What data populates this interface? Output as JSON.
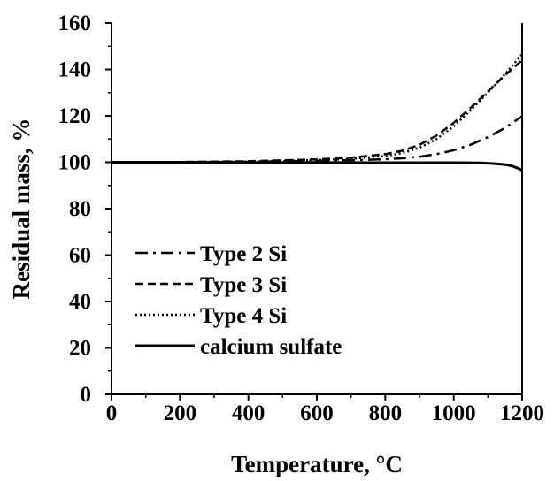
{
  "chart_data": {
    "type": "line",
    "title": "",
    "xlabel": "Temperature, °C",
    "ylabel": "Residual mass, %",
    "xlim": [
      0,
      1200
    ],
    "ylim": [
      0,
      160
    ],
    "x_ticks": [
      0,
      200,
      400,
      600,
      800,
      1000,
      1200
    ],
    "y_ticks": [
      0,
      20,
      40,
      60,
      80,
      100,
      120,
      140,
      160
    ],
    "grid": false,
    "legend_position": "lower-left",
    "series": [
      {
        "name": "Type 2 Si",
        "style": "dash-dot",
        "color": "#000000",
        "x": [
          0,
          200,
          400,
          600,
          700,
          800,
          850,
          900,
          950,
          1000,
          1050,
          1100,
          1150,
          1200
        ],
        "y": [
          100,
          100,
          100.2,
          100.6,
          100.9,
          101.3,
          101.7,
          102.4,
          103.5,
          105.2,
          107.6,
          110.8,
          114.8,
          119.8
        ]
      },
      {
        "name": "Type 3 Si",
        "style": "dashed",
        "color": "#000000",
        "x": [
          0,
          200,
          400,
          600,
          700,
          800,
          850,
          900,
          950,
          1000,
          1050,
          1100,
          1150,
          1200
        ],
        "y": [
          100,
          100.1,
          100.4,
          101.2,
          102,
          103.5,
          105,
          107.5,
          111.5,
          117,
          123.5,
          130.5,
          137.5,
          144
        ]
      },
      {
        "name": "Type 4 Si",
        "style": "dotted",
        "color": "#000000",
        "x": [
          0,
          200,
          400,
          600,
          700,
          800,
          850,
          900,
          950,
          1000,
          1050,
          1100,
          1150,
          1200
        ],
        "y": [
          100,
          100.1,
          100.3,
          100.9,
          101.5,
          102.7,
          104,
          106.3,
          110,
          115.5,
          122.5,
          130,
          138,
          146.5
        ]
      },
      {
        "name": "calcium sulfate",
        "style": "solid",
        "color": "#000000",
        "x": [
          0,
          200,
          400,
          600,
          800,
          1000,
          1080,
          1120,
          1150,
          1170,
          1190,
          1200
        ],
        "y": [
          100,
          100,
          99.9,
          99.9,
          99.8,
          99.8,
          99.7,
          99.4,
          99,
          98.4,
          97.3,
          96.5
        ]
      }
    ]
  }
}
